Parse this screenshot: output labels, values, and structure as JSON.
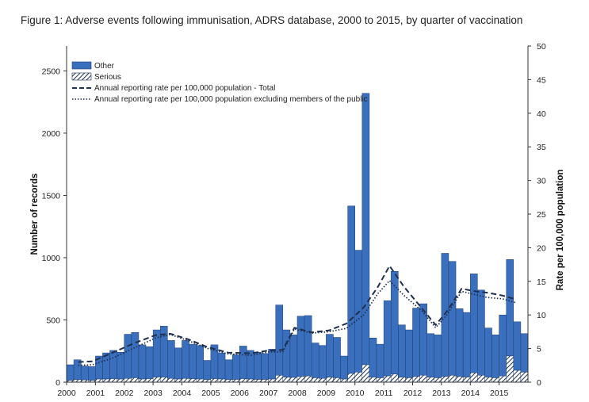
{
  "chart_data": {
    "type": "bar",
    "title": "Figure 1: Adverse events following immunisation, ADRS database, 2000 to 2015, by quarter of vaccination",
    "ylabel": "Number of records",
    "y2label": "Rate per 100,000 population",
    "xlabel": "",
    "ylim": [
      0,
      2700
    ],
    "y2lim": [
      0,
      50
    ],
    "yticks": [
      0,
      500,
      1000,
      1500,
      2000,
      2500
    ],
    "y2ticks": [
      0,
      5,
      10,
      15,
      20,
      25,
      30,
      35,
      40,
      45,
      50
    ],
    "year_labels": [
      "2000",
      "2001",
      "2002",
      "2003",
      "2004",
      "2005",
      "2006",
      "2007",
      "2008",
      "2009",
      "2010",
      "2011",
      "2012",
      "2013",
      "2014",
      "2015"
    ],
    "stacked": true,
    "quarter_totals": [
      140,
      180,
      130,
      125,
      210,
      235,
      255,
      240,
      385,
      400,
      300,
      285,
      420,
      450,
      335,
      275,
      335,
      305,
      295,
      175,
      300,
      235,
      180,
      220,
      290,
      255,
      240,
      230,
      265,
      620,
      420,
      380,
      530,
      535,
      315,
      295,
      385,
      360,
      210,
      1415,
      1060,
      2320,
      355,
      305,
      655,
      890,
      460,
      420,
      595,
      630,
      390,
      380,
      1035,
      970,
      590,
      560,
      870,
      740,
      435,
      380,
      540,
      985,
      485,
      390
    ],
    "series": [
      {
        "name": "Serious",
        "values": [
          15,
          20,
          18,
          15,
          25,
          25,
          28,
          25,
          30,
          35,
          25,
          28,
          40,
          40,
          30,
          25,
          30,
          28,
          25,
          20,
          28,
          25,
          20,
          22,
          28,
          25,
          22,
          22,
          25,
          55,
          40,
          38,
          45,
          50,
          35,
          30,
          40,
          35,
          25,
          70,
          80,
          140,
          40,
          35,
          50,
          65,
          40,
          35,
          45,
          55,
          40,
          35,
          45,
          55,
          45,
          40,
          75,
          55,
          40,
          35,
          50,
          210,
          95,
          80
        ]
      },
      {
        "name": "Other",
        "values": [
          125,
          160,
          112,
          110,
          185,
          210,
          227,
          215,
          355,
          365,
          275,
          257,
          380,
          410,
          305,
          250,
          305,
          277,
          270,
          155,
          272,
          210,
          160,
          198,
          262,
          230,
          218,
          208,
          240,
          565,
          380,
          342,
          485,
          485,
          280,
          265,
          345,
          325,
          185,
          1345,
          980,
          2180,
          315,
          270,
          605,
          825,
          420,
          385,
          550,
          575,
          350,
          345,
          990,
          915,
          545,
          520,
          795,
          685,
          395,
          345,
          490,
          775,
          390,
          310
        ]
      }
    ],
    "lines": [
      {
        "name": "Annual reporting rate per 100,000 population - Total",
        "style": "dashed",
        "axis": "secondary",
        "x_year": [
          2000.4,
          2000.9,
          2001.6,
          2002.4,
          2003.1,
          2003.6,
          2004.2,
          2004.9,
          2005.6,
          2006.4,
          2007.0,
          2007.5,
          2007.9,
          2008.5,
          2009.1,
          2009.7,
          2010.3,
          2010.8,
          2011.2,
          2011.7,
          2012.3,
          2012.8,
          2013.2,
          2013.7,
          2014.2,
          2014.6,
          2015.1,
          2015.6
        ],
        "y": [
          3.0,
          3.1,
          4.4,
          5.9,
          7.0,
          7.2,
          6.4,
          5.2,
          4.4,
          4.3,
          4.7,
          4.8,
          8.1,
          7.4,
          7.7,
          8.7,
          11.1,
          14.2,
          17.3,
          14.2,
          11.1,
          8.5,
          10.6,
          13.9,
          13.5,
          13.3,
          12.9,
          12.3
        ]
      },
      {
        "name": "Annual reporting rate per 100,000 population excluding members of the public",
        "style": "dotted",
        "axis": "secondary",
        "x_year": [
          2000.4,
          2000.9,
          2001.6,
          2002.4,
          2003.1,
          2003.6,
          2004.2,
          2004.9,
          2005.6,
          2006.4,
          2007.0,
          2007.5,
          2007.9,
          2008.5,
          2009.1,
          2009.7,
          2010.3,
          2010.8,
          2011.2,
          2011.7,
          2012.3,
          2012.8,
          2013.2,
          2013.7,
          2014.2,
          2014.6,
          2015.1,
          2015.6
        ],
        "y": [
          2.5,
          2.6,
          3.6,
          5.2,
          6.6,
          7.1,
          6.2,
          5.0,
          4.2,
          4.0,
          4.5,
          4.5,
          7.9,
          7.3,
          7.5,
          8.0,
          10.0,
          13.2,
          15.1,
          12.9,
          10.7,
          8.1,
          10.1,
          13.5,
          13.0,
          12.6,
          12.4,
          11.8
        ]
      }
    ],
    "legend": {
      "position": "top-left",
      "entries": [
        "Other",
        "Serious",
        "Annual reporting rate per 100,000 population - Total",
        "Annual reporting rate per 100,000 population excluding members of the public"
      ]
    },
    "grid": false,
    "colors": {
      "other": "#3a6fbd",
      "other_edge": "#1f3f72",
      "serious_stripe": "#1d3357",
      "line": "#1f2f4f"
    }
  }
}
